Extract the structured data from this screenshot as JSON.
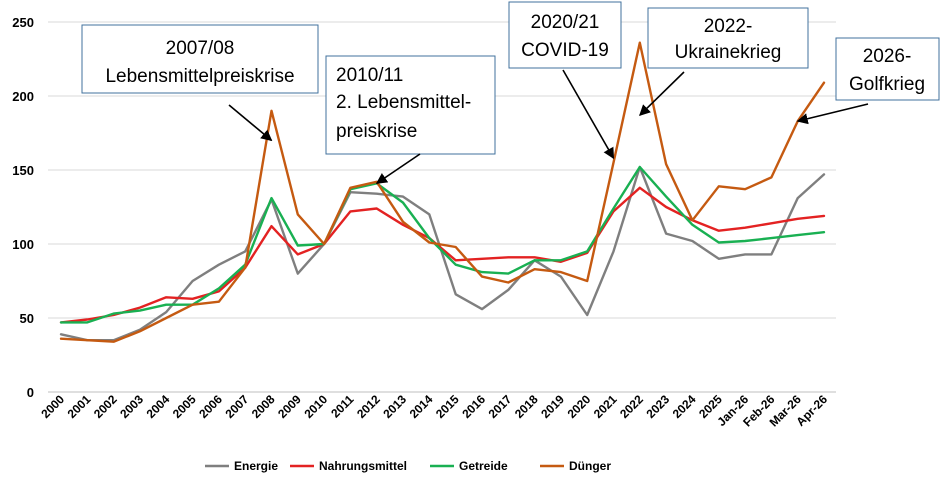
{
  "chart_data": {
    "type": "line",
    "title": "",
    "xlabel": "",
    "ylabel": "",
    "ylim": [
      0,
      250
    ],
    "yticks": [
      0,
      50,
      100,
      150,
      200,
      250
    ],
    "grid": true,
    "legend_position": "bottom",
    "categories": [
      "2000",
      "2001",
      "2002",
      "2003",
      "2004",
      "2005",
      "2006",
      "2007",
      "2008",
      "2009",
      "2010",
      "2011",
      "2012",
      "2013",
      "2014",
      "2015",
      "2016",
      "2017",
      "2018",
      "2019",
      "2020",
      "2021",
      "2022",
      "2023",
      "2024",
      "2025",
      "Jan-26",
      "Feb-26",
      "Mar-26",
      "Apr-26"
    ],
    "series": [
      {
        "name": "Energie",
        "color": "#7f7f7f",
        "values": [
          39,
          35,
          35,
          42,
          54,
          75,
          86,
          95,
          130,
          80,
          100,
          135,
          134,
          132,
          120,
          66,
          56,
          69,
          89,
          78,
          52,
          95,
          152,
          107,
          102,
          90,
          93,
          93,
          131,
          147
        ]
      },
      {
        "name": "Nahrungsmittel",
        "color": "#e32222",
        "values": [
          47,
          49,
          52,
          57,
          64,
          63,
          68,
          84,
          112,
          93,
          100,
          122,
          124,
          113,
          104,
          89,
          90,
          91,
          91,
          88,
          94,
          122,
          138,
          125,
          116,
          109,
          111,
          114,
          117,
          119
        ]
      },
      {
        "name": "Getreide",
        "color": "#19b052",
        "values": [
          47,
          47,
          53,
          55,
          59,
          59,
          70,
          86,
          131,
          99,
          100,
          137,
          141,
          128,
          104,
          86,
          81,
          80,
          89,
          89,
          95,
          124,
          152,
          132,
          113,
          101,
          102,
          104,
          106,
          108
        ]
      },
      {
        "name": "Dünger",
        "color": "#c55a11",
        "values": [
          36,
          35,
          34,
          41,
          50,
          59,
          61,
          84,
          190,
          120,
          100,
          138,
          142,
          115,
          101,
          98,
          78,
          74,
          83,
          81,
          75,
          155,
          236,
          154,
          116,
          139,
          137,
          145,
          183,
          209
        ]
      }
    ],
    "annotations": [
      {
        "id": "2008",
        "lines": [
          "2007/08",
          "Lebensmittelpreiskrise"
        ],
        "x": "2008",
        "y": 170
      },
      {
        "id": "2011",
        "lines": [
          "2010/11",
          "2. Lebensmittel-",
          "preiskrise"
        ],
        "x": "2012",
        "y": 141
      },
      {
        "id": "2021",
        "lines": [
          "2020/21",
          "COVID-19"
        ],
        "x": "2021",
        "y": 158
      },
      {
        "id": "2022",
        "lines": [
          "2022-",
          "Ukrainekrieg"
        ],
        "x": "2022",
        "y": 187
      },
      {
        "id": "2026",
        "lines": [
          "2026-",
          "Golfkrieg"
        ],
        "x": "Mar-26",
        "y": 183
      }
    ]
  }
}
